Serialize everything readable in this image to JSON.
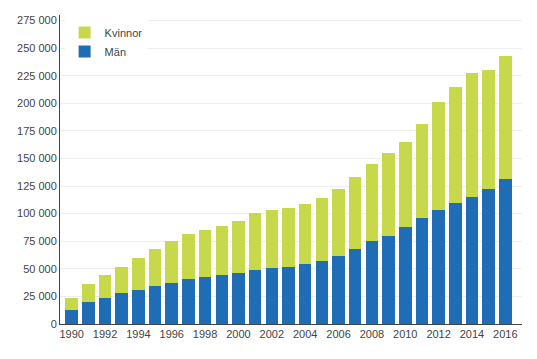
{
  "chart_data": {
    "type": "bar",
    "stacked": true,
    "x": [
      1990,
      1991,
      1992,
      1993,
      1994,
      1995,
      1996,
      1997,
      1998,
      1999,
      2000,
      2001,
      2002,
      2003,
      2004,
      2005,
      2006,
      2007,
      2008,
      2009,
      2010,
      2011,
      2012,
      2013,
      2014,
      2015,
      2016
    ],
    "series": [
      {
        "name": "Män",
        "color": "#1f6eb5",
        "values": [
          13000,
          20000,
          24000,
          28000,
          31000,
          34000,
          37000,
          41000,
          43000,
          44000,
          46000,
          49000,
          51000,
          52000,
          54000,
          57000,
          62000,
          68000,
          75000,
          80000,
          88000,
          96000,
          103000,
          110000,
          115000,
          122000,
          131000
        ]
      },
      {
        "name": "Kvinnor",
        "color": "#c8d84b",
        "values": [
          11000,
          16000,
          20000,
          24000,
          29000,
          34000,
          38000,
          41000,
          42000,
          45000,
          47000,
          52000,
          52000,
          53000,
          55000,
          57000,
          60000,
          65000,
          70000,
          75000,
          77000,
          85000,
          98000,
          105000,
          112000,
          108000,
          112000
        ]
      }
    ],
    "xlim": [
      1989.3,
      2017.0
    ],
    "xticks": [
      1990,
      1992,
      1994,
      1996,
      1998,
      2000,
      2002,
      2004,
      2006,
      2008,
      2010,
      2012,
      2014,
      2016
    ],
    "ylim": [
      0,
      280000
    ],
    "yticks": [
      0,
      {
        "value": 25000,
        "label": "25 000"
      },
      {
        "value": 50000,
        "label": "50 000"
      },
      {
        "value": 75000,
        "label": "75 000"
      },
      {
        "value": 100000,
        "label": "100 000"
      },
      {
        "value": 125000,
        "label": "125 000"
      },
      {
        "value": 150000,
        "label": "150 000"
      },
      {
        "value": 175000,
        "label": "175 000"
      },
      {
        "value": 200000,
        "label": "200 000"
      },
      {
        "value": 225000,
        "label": "225 000"
      },
      {
        "value": 250000,
        "label": "250 000"
      },
      {
        "value": 275000,
        "label": "275 000"
      }
    ],
    "grid": true,
    "legend": "upper left"
  }
}
